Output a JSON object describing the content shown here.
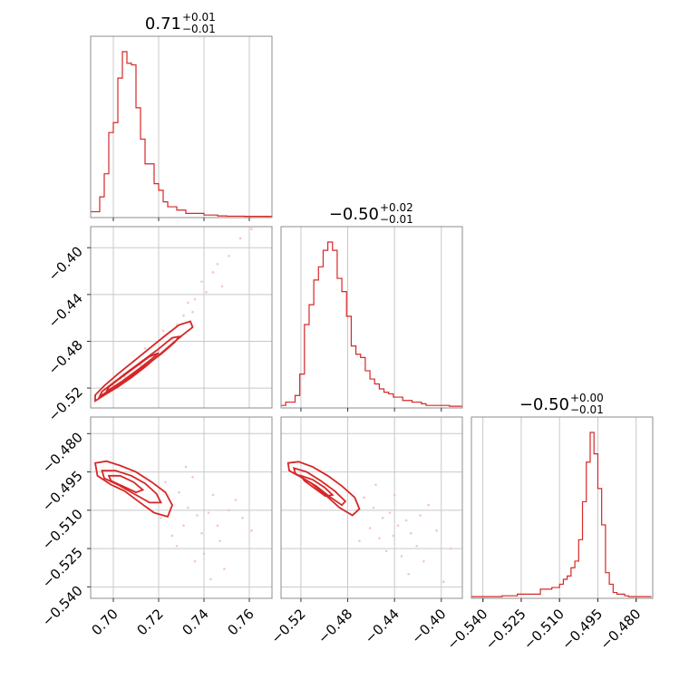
{
  "colors": {
    "accent": "#d62728",
    "fill_light": "#f4b6b8",
    "fill_mid": "#e8797c",
    "grid": "#c8c8c8",
    "frame": "#8c8c8c"
  },
  "titles": [
    {
      "value": "0.71",
      "plus": "+0.01",
      "minus": "−0.01"
    },
    {
      "value": "−0.50",
      "plus": "+0.02",
      "minus": "−0.01"
    },
    {
      "value": "−0.50",
      "plus": "+0.00",
      "minus": "−0.01"
    }
  ],
  "chart_data": {
    "type": "corner",
    "parameters": [
      {
        "ticks": [
          0.7,
          0.72,
          0.74,
          0.76
        ],
        "tick_labels": [
          "0.70",
          "0.72",
          "0.74",
          "0.76"
        ],
        "range": [
          0.69,
          0.77
        ]
      },
      {
        "ticks": [
          -0.52,
          -0.48,
          -0.44,
          -0.4
        ],
        "tick_labels": [
          "−0.52",
          "−0.48",
          "−0.44",
          "−0.40"
        ],
        "range": [
          -0.537,
          -0.382
        ]
      },
      {
        "ticks": [
          -0.54,
          -0.525,
          -0.51,
          -0.495,
          -0.48
        ],
        "tick_labels": [
          "−0.540",
          "−0.525",
          "−0.510",
          "−0.495",
          "−0.480"
        ],
        "range": [
          -0.5445,
          -0.4735
        ]
      }
    ],
    "histograms": [
      {
        "param": 0,
        "bin_edges": [
          0.69,
          0.692,
          0.694,
          0.696,
          0.698,
          0.7,
          0.702,
          0.704,
          0.706,
          0.708,
          0.71,
          0.712,
          0.714,
          0.716,
          0.718,
          0.72,
          0.722,
          0.724,
          0.726,
          0.728,
          0.73,
          0.732,
          0.734,
          0.736,
          0.738,
          0.74,
          0.742,
          0.744,
          0.746,
          0.748,
          0.75,
          0.752,
          0.754,
          0.756,
          0.758,
          0.76,
          0.762,
          0.764,
          0.766,
          0.768,
          0.77
        ],
        "values": [
          0.03,
          0.03,
          0.12,
          0.26,
          0.51,
          0.57,
          0.84,
          1.0,
          0.93,
          0.92,
          0.66,
          0.47,
          0.32,
          0.32,
          0.2,
          0.16,
          0.09,
          0.06,
          0.06,
          0.04,
          0.04,
          0.02,
          0.02,
          0.02,
          0.02,
          0.01,
          0.01,
          0.01,
          0.005,
          0.005,
          0.003,
          0.003,
          0.003,
          0.003,
          0.002,
          0.002,
          0.002,
          0.002,
          0.002,
          0.002
        ]
      },
      {
        "param": 1,
        "bin_edges": [
          -0.537,
          -0.533,
          -0.529,
          -0.525,
          -0.521,
          -0.517,
          -0.513,
          -0.509,
          -0.505,
          -0.501,
          -0.497,
          -0.493,
          -0.489,
          -0.485,
          -0.481,
          -0.477,
          -0.473,
          -0.469,
          -0.465,
          -0.461,
          -0.457,
          -0.453,
          -0.449,
          -0.445,
          -0.441,
          -0.437,
          -0.433,
          -0.429,
          -0.425,
          -0.421,
          -0.417,
          -0.413,
          -0.409,
          -0.405,
          -0.401,
          -0.397,
          -0.393,
          -0.389,
          -0.385,
          -0.382
        ],
        "values": [
          0.01,
          0.03,
          0.03,
          0.07,
          0.2,
          0.5,
          0.62,
          0.77,
          0.85,
          0.95,
          1.0,
          0.95,
          0.78,
          0.7,
          0.55,
          0.37,
          0.32,
          0.3,
          0.22,
          0.17,
          0.14,
          0.11,
          0.09,
          0.08,
          0.06,
          0.06,
          0.04,
          0.04,
          0.03,
          0.03,
          0.02,
          0.01,
          0.01,
          0.01,
          0.01,
          0.01,
          0.005,
          0.005,
          0.005
        ]
      },
      {
        "param": 2,
        "bin_edges": [
          -0.5445,
          -0.543,
          -0.5415,
          -0.54,
          -0.5385,
          -0.537,
          -0.5355,
          -0.534,
          -0.5325,
          -0.531,
          -0.5295,
          -0.528,
          -0.5265,
          -0.525,
          -0.5235,
          -0.522,
          -0.5205,
          -0.519,
          -0.5175,
          -0.516,
          -0.5145,
          -0.513,
          -0.5115,
          -0.51,
          -0.5085,
          -0.507,
          -0.5055,
          -0.504,
          -0.5025,
          -0.501,
          -0.4995,
          -0.498,
          -0.4965,
          -0.495,
          -0.4935,
          -0.492,
          -0.4905,
          -0.489,
          -0.4875,
          -0.486,
          -0.4845,
          -0.483,
          -0.4815,
          -0.48,
          -0.4785,
          -0.477,
          -0.4755,
          -0.474
        ],
        "values": [
          0.005,
          0.005,
          0.005,
          0.005,
          0.005,
          0.005,
          0.005,
          0.005,
          0.01,
          0.01,
          0.01,
          0.01,
          0.02,
          0.02,
          0.02,
          0.02,
          0.02,
          0.02,
          0.05,
          0.05,
          0.05,
          0.06,
          0.06,
          0.08,
          0.11,
          0.13,
          0.18,
          0.22,
          0.35,
          0.58,
          0.82,
          1.0,
          0.87,
          0.66,
          0.44,
          0.15,
          0.08,
          0.03,
          0.02,
          0.02,
          0.01,
          0.005,
          0.005,
          0.005,
          0.005,
          0.005,
          0.005
        ]
      }
    ],
    "pairs": [
      {
        "x_param": 0,
        "y_param": 1,
        "scatter": [
          [
            0.7,
            -0.518
          ],
          [
            0.705,
            -0.51
          ],
          [
            0.712,
            -0.5
          ],
          [
            0.72,
            -0.488
          ],
          [
            0.728,
            -0.466
          ],
          [
            0.731,
            -0.458
          ],
          [
            0.736,
            -0.444
          ],
          [
            0.741,
            -0.438
          ],
          [
            0.744,
            -0.421
          ],
          [
            0.751,
            -0.407
          ],
          [
            0.756,
            -0.392
          ],
          [
            0.761,
            -0.384
          ],
          [
            0.748,
            -0.433
          ],
          [
            0.735,
            -0.455
          ],
          [
            0.726,
            -0.478
          ],
          [
            0.718,
            -0.494
          ],
          [
            0.709,
            -0.497
          ],
          [
            0.703,
            -0.512
          ],
          [
            0.697,
            -0.522
          ],
          [
            0.722,
            -0.471
          ],
          [
            0.733,
            -0.447
          ],
          [
            0.746,
            -0.414
          ],
          [
            0.714,
            -0.486
          ],
          [
            0.739,
            -0.429
          ]
        ],
        "contours": [
          [
            [
              0.692,
              -0.531
            ],
            [
              0.696,
              -0.526
            ],
            [
              0.702,
              -0.519
            ],
            [
              0.708,
              -0.511
            ],
            [
              0.714,
              -0.502
            ],
            [
              0.72,
              -0.492
            ],
            [
              0.726,
              -0.482
            ],
            [
              0.731,
              -0.474
            ],
            [
              0.735,
              -0.468
            ],
            [
              0.734,
              -0.463
            ],
            [
              0.729,
              -0.466
            ],
            [
              0.723,
              -0.475
            ],
            [
              0.716,
              -0.486
            ],
            [
              0.709,
              -0.497
            ],
            [
              0.702,
              -0.508
            ],
            [
              0.696,
              -0.518
            ],
            [
              0.692,
              -0.526
            ],
            [
              0.692,
              -0.531
            ]
          ],
          [
            [
              0.694,
              -0.527
            ],
            [
              0.7,
              -0.52
            ],
            [
              0.707,
              -0.511
            ],
            [
              0.714,
              -0.501
            ],
            [
              0.721,
              -0.491
            ],
            [
              0.727,
              -0.481
            ],
            [
              0.729,
              -0.476
            ],
            [
              0.726,
              -0.477
            ],
            [
              0.719,
              -0.488
            ],
            [
              0.712,
              -0.498
            ],
            [
              0.705,
              -0.508
            ],
            [
              0.699,
              -0.517
            ],
            [
              0.695,
              -0.523
            ],
            [
              0.694,
              -0.527
            ]
          ],
          [
            [
              0.697,
              -0.523
            ],
            [
              0.704,
              -0.514
            ],
            [
              0.711,
              -0.504
            ],
            [
              0.717,
              -0.495
            ],
            [
              0.72,
              -0.49
            ],
            [
              0.716,
              -0.493
            ],
            [
              0.709,
              -0.503
            ],
            [
              0.702,
              -0.513
            ],
            [
              0.698,
              -0.519
            ],
            [
              0.697,
              -0.523
            ]
          ]
        ]
      },
      {
        "x_param": 0,
        "y_param": 2,
        "scatter": [
          [
            0.723,
            -0.499
          ],
          [
            0.729,
            -0.503
          ],
          [
            0.733,
            -0.509
          ],
          [
            0.737,
            -0.512
          ],
          [
            0.742,
            -0.511
          ],
          [
            0.746,
            -0.516
          ],
          [
            0.739,
            -0.519
          ],
          [
            0.731,
            -0.516
          ],
          [
            0.726,
            -0.52
          ],
          [
            0.721,
            -0.513
          ],
          [
            0.735,
            -0.497
          ],
          [
            0.744,
            -0.504
          ],
          [
            0.751,
            -0.51
          ],
          [
            0.757,
            -0.513
          ],
          [
            0.74,
            -0.527
          ],
          [
            0.728,
            -0.524
          ],
          [
            0.747,
            -0.522
          ],
          [
            0.754,
            -0.506
          ],
          [
            0.718,
            -0.507
          ],
          [
            0.736,
            -0.53
          ],
          [
            0.749,
            -0.533
          ],
          [
            0.732,
            -0.493
          ],
          [
            0.761,
            -0.518
          ],
          [
            0.743,
            -0.537
          ]
        ],
        "contours": [
          [
            [
              0.692,
              -0.4915
            ],
            [
              0.697,
              -0.4908
            ],
            [
              0.703,
              -0.4925
            ],
            [
              0.71,
              -0.495
            ],
            [
              0.717,
              -0.499
            ],
            [
              0.723,
              -0.503
            ],
            [
              0.726,
              -0.508
            ],
            [
              0.724,
              -0.5125
            ],
            [
              0.718,
              -0.511
            ],
            [
              0.711,
              -0.5065
            ],
            [
              0.705,
              -0.5025
            ],
            [
              0.699,
              -0.5
            ],
            [
              0.693,
              -0.4965
            ],
            [
              0.692,
              -0.4915
            ]
          ],
          [
            [
              0.695,
              -0.4945
            ],
            [
              0.701,
              -0.4945
            ],
            [
              0.708,
              -0.4965
            ],
            [
              0.714,
              -0.4995
            ],
            [
              0.719,
              -0.5035
            ],
            [
              0.721,
              -0.507
            ],
            [
              0.716,
              -0.507
            ],
            [
              0.709,
              -0.5035
            ],
            [
              0.702,
              -0.5
            ],
            [
              0.696,
              -0.4975
            ],
            [
              0.695,
              -0.4945
            ]
          ],
          [
            [
              0.698,
              -0.4965
            ],
            [
              0.703,
              -0.4965
            ],
            [
              0.709,
              -0.499
            ],
            [
              0.713,
              -0.502
            ],
            [
              0.71,
              -0.503
            ],
            [
              0.704,
              -0.5005
            ],
            [
              0.699,
              -0.4985
            ],
            [
              0.698,
              -0.4965
            ]
          ]
        ]
      },
      {
        "x_param": 1,
        "y_param": 2,
        "scatter": [
          [
            -0.466,
            -0.505
          ],
          [
            -0.458,
            -0.509
          ],
          [
            -0.45,
            -0.513
          ],
          [
            -0.444,
            -0.511
          ],
          [
            -0.437,
            -0.516
          ],
          [
            -0.43,
            -0.514
          ],
          [
            -0.441,
            -0.52
          ],
          [
            -0.453,
            -0.521
          ],
          [
            -0.461,
            -0.517
          ],
          [
            -0.472,
            -0.51
          ],
          [
            -0.426,
            -0.519
          ],
          [
            -0.418,
            -0.512
          ],
          [
            -0.411,
            -0.508
          ],
          [
            -0.404,
            -0.518
          ],
          [
            -0.447,
            -0.526
          ],
          [
            -0.434,
            -0.528
          ],
          [
            -0.421,
            -0.524
          ],
          [
            -0.398,
            -0.538
          ],
          [
            -0.456,
            -0.5
          ],
          [
            -0.44,
            -0.504
          ],
          [
            -0.415,
            -0.53
          ],
          [
            -0.428,
            -0.535
          ],
          [
            -0.47,
            -0.522
          ],
          [
            -0.392,
            -0.525
          ]
        ],
        "contours": [
          [
            [
              -0.531,
              -0.4915
            ],
            [
              -0.522,
              -0.491
            ],
            [
              -0.51,
              -0.493
            ],
            [
              -0.497,
              -0.4965
            ],
            [
              -0.485,
              -0.5005
            ],
            [
              -0.474,
              -0.505
            ],
            [
              -0.47,
              -0.5095
            ],
            [
              -0.476,
              -0.512
            ],
            [
              -0.487,
              -0.509
            ],
            [
              -0.499,
              -0.504
            ],
            [
              -0.511,
              -0.4995
            ],
            [
              -0.522,
              -0.4965
            ],
            [
              -0.53,
              -0.4945
            ],
            [
              -0.531,
              -0.4915
            ]
          ],
          [
            [
              -0.526,
              -0.4935
            ],
            [
              -0.515,
              -0.495
            ],
            [
              -0.503,
              -0.4985
            ],
            [
              -0.491,
              -0.5025
            ],
            [
              -0.482,
              -0.5065
            ],
            [
              -0.485,
              -0.508
            ],
            [
              -0.496,
              -0.5045
            ],
            [
              -0.507,
              -0.5005
            ],
            [
              -0.518,
              -0.4975
            ],
            [
              -0.525,
              -0.4955
            ],
            [
              -0.526,
              -0.4935
            ]
          ],
          [
            [
              -0.52,
              -0.4965
            ],
            [
              -0.51,
              -0.498
            ],
            [
              -0.5,
              -0.501
            ],
            [
              -0.493,
              -0.504
            ],
            [
              -0.499,
              -0.5045
            ],
            [
              -0.508,
              -0.5015
            ],
            [
              -0.517,
              -0.4985
            ],
            [
              -0.52,
              -0.4965
            ]
          ]
        ]
      }
    ],
    "grid": true
  }
}
